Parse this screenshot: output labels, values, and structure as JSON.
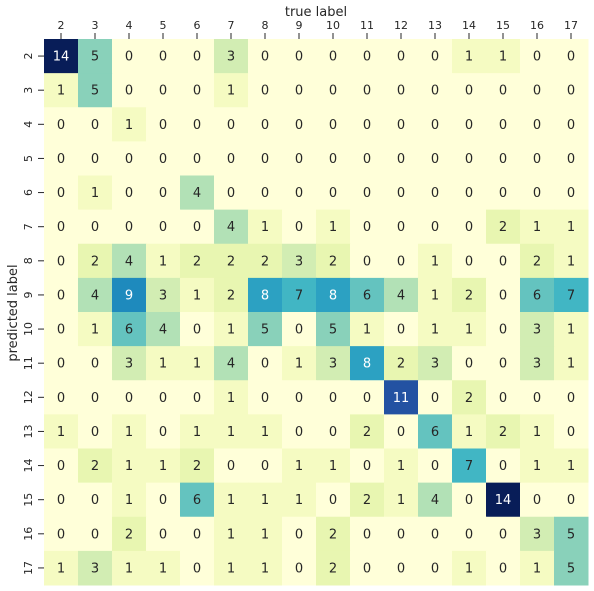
{
  "chart_data": {
    "type": "heatmap",
    "title": "",
    "xlabel": "true label",
    "ylabel": "predicted label",
    "x_categories": [
      "2",
      "3",
      "4",
      "5",
      "6",
      "7",
      "8",
      "9",
      "10",
      "11",
      "12",
      "13",
      "14",
      "15",
      "16",
      "17"
    ],
    "y_categories": [
      "2",
      "3",
      "4",
      "5",
      "6",
      "7",
      "8",
      "9",
      "10",
      "11",
      "12",
      "13",
      "14",
      "15",
      "16",
      "17"
    ],
    "x_axis_position": "top",
    "colormap": "YlGnBu",
    "color_range": [
      0,
      14
    ],
    "colorbar": false,
    "annotated": true,
    "values": [
      [
        14,
        5,
        0,
        0,
        0,
        3,
        0,
        0,
        0,
        0,
        0,
        0,
        1,
        1,
        0,
        0
      ],
      [
        1,
        5,
        0,
        0,
        0,
        1,
        0,
        0,
        0,
        0,
        0,
        0,
        0,
        0,
        0,
        0
      ],
      [
        0,
        0,
        1,
        0,
        0,
        0,
        0,
        0,
        0,
        0,
        0,
        0,
        0,
        0,
        0,
        0
      ],
      [
        0,
        0,
        0,
        0,
        0,
        0,
        0,
        0,
        0,
        0,
        0,
        0,
        0,
        0,
        0,
        0
      ],
      [
        0,
        1,
        0,
        0,
        4,
        0,
        0,
        0,
        0,
        0,
        0,
        0,
        0,
        0,
        0,
        0
      ],
      [
        0,
        0,
        0,
        0,
        0,
        4,
        1,
        0,
        1,
        0,
        0,
        0,
        0,
        2,
        1,
        1
      ],
      [
        0,
        2,
        4,
        1,
        2,
        2,
        2,
        3,
        2,
        0,
        0,
        1,
        0,
        0,
        2,
        1
      ],
      [
        0,
        4,
        9,
        3,
        1,
        2,
        8,
        7,
        8,
        6,
        4,
        1,
        2,
        0,
        6,
        7
      ],
      [
        0,
        1,
        6,
        4,
        0,
        1,
        5,
        0,
        5,
        1,
        0,
        1,
        1,
        0,
        3,
        1
      ],
      [
        0,
        0,
        3,
        1,
        1,
        4,
        0,
        1,
        3,
        8,
        2,
        3,
        0,
        0,
        3,
        1
      ],
      [
        0,
        0,
        0,
        0,
        0,
        1,
        0,
        0,
        0,
        0,
        11,
        0,
        2,
        0,
        0,
        0
      ],
      [
        1,
        0,
        1,
        0,
        1,
        1,
        1,
        0,
        0,
        2,
        0,
        6,
        1,
        2,
        1,
        0
      ],
      [
        0,
        2,
        1,
        1,
        2,
        0,
        0,
        1,
        1,
        0,
        1,
        0,
        7,
        0,
        1,
        1
      ],
      [
        0,
        0,
        1,
        0,
        6,
        1,
        1,
        1,
        0,
        2,
        1,
        4,
        0,
        14,
        0,
        0
      ],
      [
        0,
        0,
        2,
        0,
        0,
        1,
        1,
        0,
        2,
        0,
        0,
        0,
        0,
        0,
        3,
        5
      ],
      [
        1,
        3,
        1,
        1,
        0,
        1,
        1,
        0,
        2,
        0,
        0,
        0,
        1,
        0,
        1,
        5
      ]
    ]
  }
}
